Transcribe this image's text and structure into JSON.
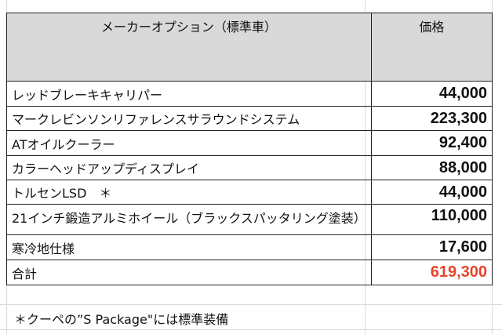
{
  "table": {
    "headers": [
      "メーカーオプション（標準車）",
      "価格"
    ],
    "rows": [
      {
        "name": "レッドブレーキキャリパー",
        "price": "44,000"
      },
      {
        "name": "マークレビンソンリファレンスサラウンドシステム",
        "price": "223,300"
      },
      {
        "name": "ATオイルクーラー",
        "price": "92,400"
      },
      {
        "name": "カラーヘッドアップディスプレイ",
        "price": "88,000"
      },
      {
        "name": "トルセンLSD　＊",
        "price": "44,000"
      },
      {
        "name": "21インチ鍛造アルミホイール（ブラックスパッタリング塗装）",
        "price": "110,000"
      },
      {
        "name": "寒冷地仕様",
        "price": "17,600"
      }
    ],
    "total": {
      "label": "合計",
      "price": "619,300"
    }
  },
  "note": "＊クーペの”S Package\"には標準装備",
  "colors": {
    "header_bg": "#d9d9d9",
    "total_price": "#e8442a"
  }
}
